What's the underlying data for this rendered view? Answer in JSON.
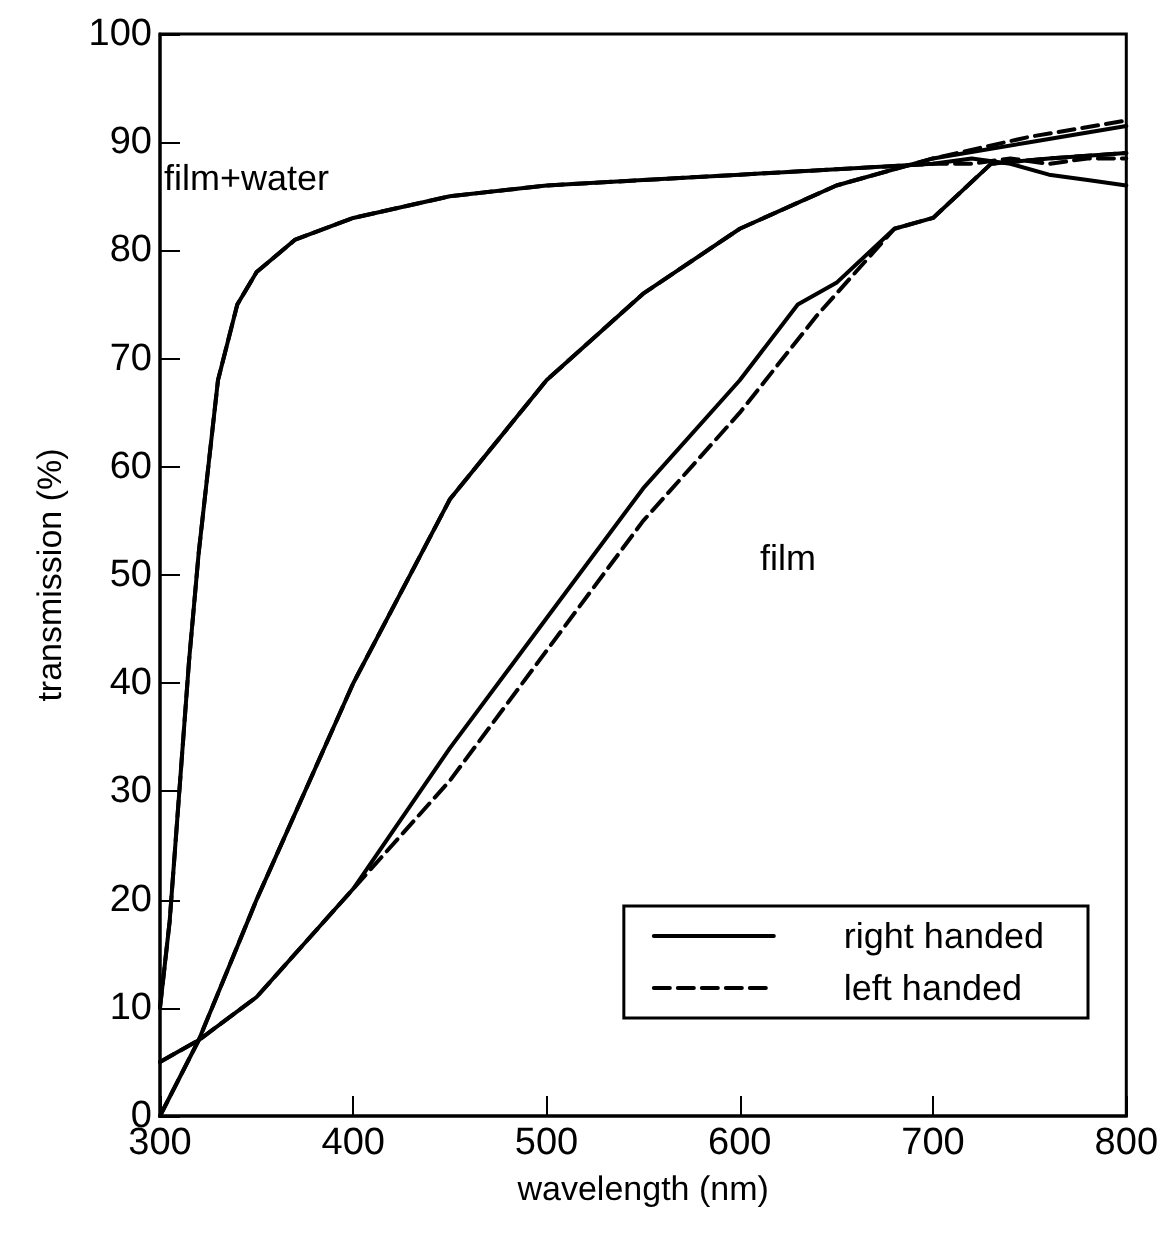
{
  "chart_data": {
    "type": "line",
    "xlabel": "wavelength (nm)",
    "ylabel": "transmission (%)",
    "xlim": [
      300,
      800
    ],
    "xticks": [
      300,
      400,
      500,
      600,
      700,
      800
    ],
    "ylim": [
      0,
      100
    ],
    "yticks": [
      0,
      10,
      20,
      30,
      40,
      50,
      60,
      70,
      80,
      90,
      100
    ],
    "grid": false,
    "legend": "bottom right",
    "marker": "none",
    "annotations": [
      "film+water",
      "film"
    ],
    "series": [
      {
        "name": "right handed",
        "color": "#000000",
        "line_style": "solid",
        "x": [
          300,
          305,
          310,
          315,
          320,
          330,
          340,
          350,
          370,
          400,
          450,
          500,
          550,
          600,
          650,
          700,
          720,
          740,
          760,
          780,
          800
        ],
        "values": [
          10,
          18,
          30,
          42,
          52,
          68,
          75,
          78,
          81,
          83,
          85,
          86,
          86.5,
          87,
          87.5,
          88,
          88.5,
          88,
          87,
          86.5,
          86
        ]
      },
      {
        "name": "left handed",
        "color": "#000000",
        "line_style": "dashed",
        "x": [
          300,
          305,
          310,
          315,
          320,
          330,
          340,
          350,
          370,
          400,
          450,
          500,
          550,
          600,
          650,
          700,
          720,
          740,
          760,
          780,
          800
        ],
        "values": [
          10,
          18,
          30,
          42,
          52,
          68,
          75,
          78,
          81,
          83,
          85,
          86,
          86.5,
          87,
          87.5,
          88,
          88,
          88.5,
          88,
          88.5,
          88.5
        ]
      },
      {
        "color": "#000000",
        "line_style": "solid",
        "x": [
          300,
          320,
          350,
          400,
          450,
          500,
          550,
          600,
          650,
          700,
          750,
          800
        ],
        "values": [
          0,
          7,
          20,
          40,
          57,
          68,
          76,
          82,
          86,
          88.5,
          90,
          91.5
        ]
      },
      {
        "color": "#000000",
        "line_style": "dashed",
        "x": [
          300,
          320,
          350,
          400,
          450,
          500,
          550,
          600,
          650,
          700,
          750,
          800
        ],
        "values": [
          0,
          7,
          20,
          40,
          57,
          68,
          76,
          82,
          86,
          88.5,
          90.5,
          92
        ]
      },
      {
        "color": "#000000",
        "line_style": "solid",
        "x": [
          300,
          310,
          320,
          350,
          400,
          450,
          500,
          550,
          600,
          630,
          650,
          680,
          700,
          730,
          760,
          800
        ],
        "values": [
          5,
          6,
          7,
          11,
          21,
          34,
          46,
          58,
          68,
          75,
          77,
          82,
          83,
          88,
          88.5,
          89
        ]
      },
      {
        "color": "#000000",
        "line_style": "dashed",
        "x": [
          300,
          310,
          320,
          350,
          400,
          450,
          500,
          550,
          600,
          640,
          660,
          680,
          700,
          730,
          760,
          800
        ],
        "values": [
          5,
          6,
          7,
          11,
          21,
          31,
          43,
          55,
          65,
          74,
          78,
          82,
          83,
          88,
          88.5,
          89
        ]
      }
    ]
  }
}
